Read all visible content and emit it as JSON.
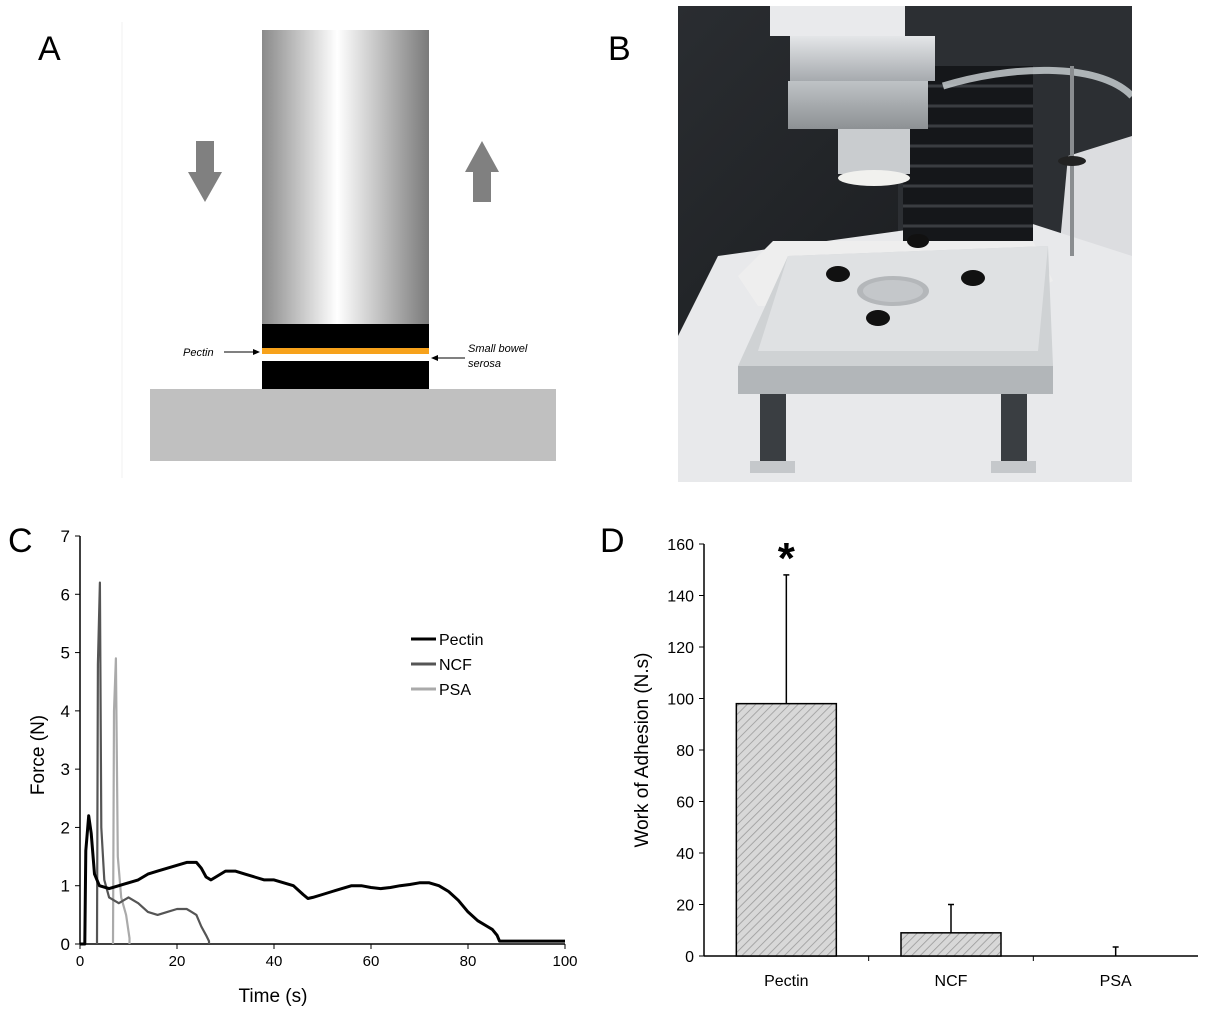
{
  "panels": {
    "a": "A",
    "b": "B",
    "c": "C",
    "d": "D"
  },
  "diagram": {
    "pectin_label": "Pectin",
    "serosa_label_line1": "Small bowel",
    "serosa_label_line2": "serosa"
  },
  "chart_c": {
    "type": "line",
    "xlabel": "Time (s)",
    "ylabel": "Force (N)",
    "xlim": [
      0,
      100
    ],
    "ylim": [
      0,
      7
    ],
    "xticks": [
      0,
      20,
      40,
      60,
      80,
      100
    ],
    "yticks": [
      0,
      1,
      2,
      3,
      4,
      5,
      6,
      7
    ],
    "legend_position": "right",
    "series": [
      {
        "name": "Pectin",
        "color": "#000000",
        "points": [
          [
            0,
            0
          ],
          [
            1,
            0
          ],
          [
            1.2,
            1.6
          ],
          [
            1.8,
            2.2
          ],
          [
            2.3,
            1.9
          ],
          [
            3,
            1.2
          ],
          [
            4,
            1.0
          ],
          [
            6,
            0.95
          ],
          [
            8,
            1.0
          ],
          [
            10,
            1.05
          ],
          [
            12,
            1.1
          ],
          [
            14,
            1.2
          ],
          [
            16,
            1.25
          ],
          [
            18,
            1.3
          ],
          [
            20,
            1.35
          ],
          [
            22,
            1.4
          ],
          [
            24,
            1.4
          ],
          [
            25,
            1.3
          ],
          [
            26,
            1.15
          ],
          [
            27,
            1.1
          ],
          [
            28,
            1.15
          ],
          [
            30,
            1.25
          ],
          [
            32,
            1.25
          ],
          [
            34,
            1.2
          ],
          [
            36,
            1.15
          ],
          [
            38,
            1.1
          ],
          [
            40,
            1.1
          ],
          [
            42,
            1.05
          ],
          [
            44,
            1.0
          ],
          [
            46,
            0.85
          ],
          [
            47,
            0.78
          ],
          [
            48,
            0.8
          ],
          [
            50,
            0.85
          ],
          [
            52,
            0.9
          ],
          [
            54,
            0.95
          ],
          [
            56,
            1.0
          ],
          [
            58,
            1.0
          ],
          [
            60,
            0.97
          ],
          [
            62,
            0.95
          ],
          [
            64,
            0.97
          ],
          [
            66,
            1.0
          ],
          [
            68,
            1.02
          ],
          [
            70,
            1.05
          ],
          [
            72,
            1.05
          ],
          [
            74,
            1.0
          ],
          [
            76,
            0.9
          ],
          [
            78,
            0.75
          ],
          [
            80,
            0.55
          ],
          [
            82,
            0.4
          ],
          [
            84,
            0.3
          ],
          [
            85,
            0.25
          ],
          [
            86,
            0.15
          ],
          [
            86.5,
            0.05
          ],
          [
            87,
            0.05
          ],
          [
            100,
            0.05
          ]
        ]
      },
      {
        "name": "NCF",
        "color": "#555555",
        "points": [
          [
            3.5,
            0
          ],
          [
            3.7,
            4.8
          ],
          [
            4.1,
            6.2
          ],
          [
            4.4,
            2.0
          ],
          [
            5,
            1.1
          ],
          [
            6,
            0.8
          ],
          [
            8,
            0.7
          ],
          [
            10,
            0.8
          ],
          [
            12,
            0.7
          ],
          [
            14,
            0.55
          ],
          [
            16,
            0.5
          ],
          [
            18,
            0.55
          ],
          [
            20,
            0.6
          ],
          [
            22,
            0.6
          ],
          [
            23,
            0.55
          ],
          [
            24,
            0.5
          ],
          [
            25,
            0.3
          ],
          [
            26,
            0.15
          ],
          [
            26.6,
            0.05
          ],
          [
            26.6,
            0
          ]
        ]
      },
      {
        "name": "PSA",
        "color": "#aaaaaa",
        "points": [
          [
            6.8,
            0
          ],
          [
            7.0,
            4.0
          ],
          [
            7.4,
            4.9
          ],
          [
            7.8,
            1.5
          ],
          [
            8.5,
            0.8
          ],
          [
            9.5,
            0.5
          ],
          [
            10.2,
            0.1
          ],
          [
            10.2,
            0
          ]
        ]
      }
    ]
  },
  "chart_d": {
    "type": "bar",
    "ylabel": "Work of Adhesion (N.s)",
    "categories": [
      "Pectin",
      "NCF",
      "PSA"
    ],
    "values": [
      98,
      9,
      0
    ],
    "errors": [
      50,
      11,
      3.5
    ],
    "ylim": [
      0,
      160
    ],
    "yticks": [
      0,
      20,
      40,
      60,
      80,
      100,
      120,
      140,
      160
    ],
    "significance": "*",
    "bar_fill": "#d8d8d8",
    "hatch_color": "#9a9a9a"
  }
}
